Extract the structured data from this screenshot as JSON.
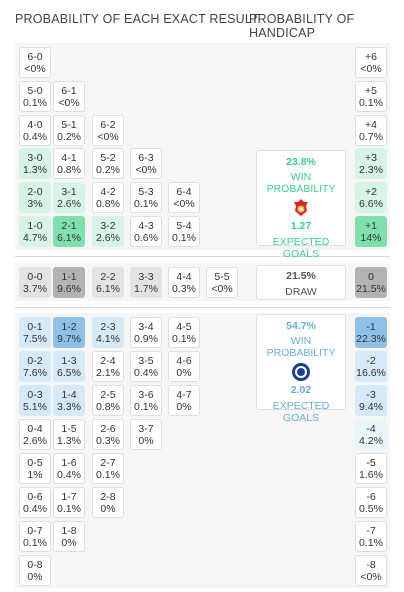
{
  "headers": {
    "exact": "PROBABILITY OF EACH EXACT RESULT",
    "handicap": "PROBABILITY OF HANDICAP"
  },
  "colors": {
    "green_dark": "#7fe0ad",
    "green_light": "#d7f5e6",
    "gray_dark": "#b3b3b3",
    "gray_light": "#e3e3e3",
    "blue_dark": "#8ec0e8",
    "blue_light": "#d6e9f7",
    "blue_faint": "#eaf4fb",
    "green_text": "#3ecf8e",
    "blue_text": "#6aacde"
  },
  "home_wins": [
    {
      "score": "6-0",
      "pct": "<0%",
      "col": 0,
      "row": 0,
      "shade": ""
    },
    {
      "score": "5-0",
      "pct": "0.1%",
      "col": 0,
      "row": 1,
      "shade": ""
    },
    {
      "score": "6-1",
      "pct": "<0%",
      "col": 1,
      "row": 1,
      "shade": ""
    },
    {
      "score": "4-0",
      "pct": "0.4%",
      "col": 0,
      "row": 2,
      "shade": ""
    },
    {
      "score": "5-1",
      "pct": "0.2%",
      "col": 1,
      "row": 2,
      "shade": ""
    },
    {
      "score": "6-2",
      "pct": "<0%",
      "col": 2,
      "row": 2,
      "shade": ""
    },
    {
      "score": "3-0",
      "pct": "1.3%",
      "col": 0,
      "row": 3,
      "shade": "light"
    },
    {
      "score": "4-1",
      "pct": "0.8%",
      "col": 1,
      "row": 3,
      "shade": ""
    },
    {
      "score": "5-2",
      "pct": "0.2%",
      "col": 2,
      "row": 3,
      "shade": ""
    },
    {
      "score": "6-3",
      "pct": "<0%",
      "col": 3,
      "row": 3,
      "shade": ""
    },
    {
      "score": "2-0",
      "pct": "3%",
      "col": 0,
      "row": 4,
      "shade": "light"
    },
    {
      "score": "3-1",
      "pct": "2.6%",
      "col": 1,
      "row": 4,
      "shade": "light"
    },
    {
      "score": "4-2",
      "pct": "0.8%",
      "col": 2,
      "row": 4,
      "shade": ""
    },
    {
      "score": "5-3",
      "pct": "0.1%",
      "col": 3,
      "row": 4,
      "shade": ""
    },
    {
      "score": "6-4",
      "pct": "<0%",
      "col": 4,
      "row": 4,
      "shade": ""
    },
    {
      "score": "1-0",
      "pct": "4.7%",
      "col": 0,
      "row": 5,
      "shade": "light"
    },
    {
      "score": "2-1",
      "pct": "6.1%",
      "col": 1,
      "row": 5,
      "shade": "dark"
    },
    {
      "score": "3-2",
      "pct": "2.6%",
      "col": 2,
      "row": 5,
      "shade": "light"
    },
    {
      "score": "4-3",
      "pct": "0.6%",
      "col": 3,
      "row": 5,
      "shade": ""
    },
    {
      "score": "5-4",
      "pct": "0.1%",
      "col": 4,
      "row": 5,
      "shade": ""
    }
  ],
  "draws": [
    {
      "score": "0-0",
      "pct": "3.7%",
      "col": 0,
      "shade": "light"
    },
    {
      "score": "1-1",
      "pct": "9.6%",
      "col": 1,
      "shade": "dark"
    },
    {
      "score": "2-2",
      "pct": "6.1%",
      "col": 2,
      "shade": "light"
    },
    {
      "score": "3-3",
      "pct": "1.7%",
      "col": 3,
      "shade": "light"
    },
    {
      "score": "4-4",
      "pct": "0.3%",
      "col": 4,
      "shade": ""
    },
    {
      "score": "5-5",
      "pct": "<0%",
      "col": 5,
      "shade": ""
    }
  ],
  "away_wins": [
    {
      "score": "0-1",
      "pct": "7.5%",
      "col": 0,
      "row": 0,
      "shade": "light"
    },
    {
      "score": "1-2",
      "pct": "9.7%",
      "col": 1,
      "row": 0,
      "shade": "dark"
    },
    {
      "score": "2-3",
      "pct": "4.1%",
      "col": 2,
      "row": 0,
      "shade": "light"
    },
    {
      "score": "3-4",
      "pct": "0.9%",
      "col": 3,
      "row": 0,
      "shade": ""
    },
    {
      "score": "4-5",
      "pct": "0.1%",
      "col": 4,
      "row": 0,
      "shade": ""
    },
    {
      "score": "0-2",
      "pct": "7.6%",
      "col": 0,
      "row": 1,
      "shade": "light"
    },
    {
      "score": "1-3",
      "pct": "6.5%",
      "col": 1,
      "row": 1,
      "shade": "light"
    },
    {
      "score": "2-4",
      "pct": "2.1%",
      "col": 2,
      "row": 1,
      "shade": ""
    },
    {
      "score": "3-5",
      "pct": "0.4%",
      "col": 3,
      "row": 1,
      "shade": ""
    },
    {
      "score": "4-6",
      "pct": "0%",
      "col": 4,
      "row": 1,
      "shade": ""
    },
    {
      "score": "0-3",
      "pct": "5.1%",
      "col": 0,
      "row": 2,
      "shade": "light"
    },
    {
      "score": "1-4",
      "pct": "3.3%",
      "col": 1,
      "row": 2,
      "shade": "light"
    },
    {
      "score": "2-5",
      "pct": "0.8%",
      "col": 2,
      "row": 2,
      "shade": ""
    },
    {
      "score": "3-6",
      "pct": "0.1%",
      "col": 3,
      "row": 2,
      "shade": ""
    },
    {
      "score": "4-7",
      "pct": "0%",
      "col": 4,
      "row": 2,
      "shade": ""
    },
    {
      "score": "0-4",
      "pct": "2.6%",
      "col": 0,
      "row": 3,
      "shade": ""
    },
    {
      "score": "1-5",
      "pct": "1.3%",
      "col": 1,
      "row": 3,
      "shade": ""
    },
    {
      "score": "2-6",
      "pct": "0.3%",
      "col": 2,
      "row": 3,
      "shade": ""
    },
    {
      "score": "3-7",
      "pct": "0%",
      "col": 3,
      "row": 3,
      "shade": ""
    },
    {
      "score": "0-5",
      "pct": "1%",
      "col": 0,
      "row": 4,
      "shade": ""
    },
    {
      "score": "1-6",
      "pct": "0.4%",
      "col": 1,
      "row": 4,
      "shade": ""
    },
    {
      "score": "2-7",
      "pct": "0.1%",
      "col": 2,
      "row": 4,
      "shade": ""
    },
    {
      "score": "0-6",
      "pct": "0.4%",
      "col": 0,
      "row": 5,
      "shade": ""
    },
    {
      "score": "1-7",
      "pct": "0.1%",
      "col": 1,
      "row": 5,
      "shade": ""
    },
    {
      "score": "2-8",
      "pct": "0%",
      "col": 2,
      "row": 5,
      "shade": ""
    },
    {
      "score": "0-7",
      "pct": "0.1%",
      "col": 0,
      "row": 6,
      "shade": ""
    },
    {
      "score": "1-8",
      "pct": "0%",
      "col": 1,
      "row": 6,
      "shade": ""
    },
    {
      "score": "0-8",
      "pct": "0%",
      "col": 0,
      "row": 7,
      "shade": ""
    }
  ],
  "handicap_home": [
    {
      "line": "+6",
      "pct": "<0%",
      "shade": ""
    },
    {
      "line": "+5",
      "pct": "0.1%",
      "shade": ""
    },
    {
      "line": "+4",
      "pct": "0.7%",
      "shade": ""
    },
    {
      "line": "+3",
      "pct": "2.3%",
      "shade": "light"
    },
    {
      "line": "+2",
      "pct": "6.6%",
      "shade": "light"
    },
    {
      "line": "+1",
      "pct": "14%",
      "shade": "dark"
    }
  ],
  "handicap_draw": {
    "line": "0",
    "pct": "21.5%",
    "shade": "dark"
  },
  "handicap_away": [
    {
      "line": "-1",
      "pct": "22.3%",
      "shade": "dark"
    },
    {
      "line": "-2",
      "pct": "16.6%",
      "shade": "light"
    },
    {
      "line": "-3",
      "pct": "9.4%",
      "shade": "light"
    },
    {
      "line": "-4",
      "pct": "4.2%",
      "shade": "faint"
    },
    {
      "line": "-5",
      "pct": "1.6%",
      "shade": ""
    },
    {
      "line": "-6",
      "pct": "0.5%",
      "shade": ""
    },
    {
      "line": "-7",
      "pct": "0.1%",
      "shade": ""
    },
    {
      "line": "-8",
      "pct": "<0%",
      "shade": ""
    }
  ],
  "home_summary": {
    "win_pct": "23.8%",
    "win_label": "WIN PROBABILITY",
    "goals": "1.27",
    "goals_label": "EXPECTED GOALS",
    "crest": "benfica-crest-icon"
  },
  "draw_summary": {
    "pct": "21.5%",
    "label": "DRAW"
  },
  "away_summary": {
    "win_pct": "54.7%",
    "win_label": "WIN PROBABILITY",
    "goals": "2.02",
    "goals_label": "EXPECTED GOALS",
    "crest": "chelsea-crest-icon"
  }
}
